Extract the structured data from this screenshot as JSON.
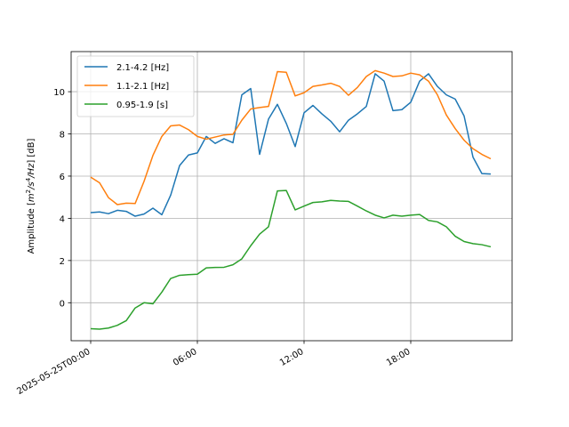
{
  "chart_data": {
    "type": "line",
    "ylabel": "Amplitude",
    "ylabel_unit": "[dB]",
    "ylim": [
      -1.8,
      11.9
    ],
    "xlim_hours": [
      -1.1,
      23.7
    ],
    "yticks": [
      0,
      2,
      4,
      6,
      8,
      10
    ],
    "xticks": [
      {
        "hour": 0,
        "label": "2025-05-25T00:00"
      },
      {
        "hour": 6,
        "label": "06:00"
      },
      {
        "hour": 12,
        "label": "12:00"
      },
      {
        "hour": 18,
        "label": "18:00"
      }
    ],
    "grid": true,
    "legend_position": "top-left",
    "x_hours": [
      0,
      0.5,
      1,
      1.5,
      2,
      2.5,
      3,
      3.5,
      4,
      4.5,
      5,
      5.5,
      6,
      6.5,
      7,
      7.5,
      8,
      8.5,
      9,
      9.5,
      10,
      10.5,
      11,
      11.5,
      12,
      12.5,
      13,
      13.5,
      14,
      14.5,
      15,
      15.5,
      16,
      16.5,
      17,
      17.5,
      18,
      18.5,
      19,
      19.5,
      20,
      20.5,
      21,
      21.5,
      22,
      22.5
    ],
    "series": [
      {
        "name": "2.1-4.2 [Hz]",
        "color": "#1f77b4",
        "values": [
          4.27,
          4.3,
          4.22,
          4.38,
          4.33,
          4.1,
          4.2,
          4.48,
          4.17,
          5.1,
          6.5,
          7.0,
          7.1,
          7.88,
          7.55,
          7.77,
          7.58,
          9.85,
          10.15,
          7.03,
          8.7,
          9.4,
          8.5,
          7.4,
          9.0,
          9.35,
          8.95,
          8.6,
          8.1,
          8.65,
          8.95,
          9.3,
          10.85,
          10.5,
          9.1,
          9.15,
          9.5,
          10.5,
          10.85,
          10.25,
          9.85,
          9.65,
          8.85,
          6.9,
          6.12,
          6.1
        ]
      },
      {
        "name": "1.1-2.1 [Hz]",
        "color": "#ff7f0e",
        "values": [
          5.95,
          5.68,
          4.98,
          4.65,
          4.72,
          4.7,
          5.75,
          6.98,
          7.88,
          8.38,
          8.42,
          8.2,
          7.88,
          7.75,
          7.85,
          7.95,
          7.98,
          8.65,
          9.18,
          9.25,
          9.3,
          10.95,
          10.92,
          9.8,
          9.95,
          10.25,
          10.32,
          10.4,
          10.25,
          9.83,
          10.2,
          10.72,
          11.0,
          10.88,
          10.72,
          10.75,
          10.88,
          10.8,
          10.5,
          9.85,
          8.9,
          8.25,
          7.7,
          7.3,
          7.03,
          6.82
        ]
      },
      {
        "name": "0.95-1.9 [s]",
        "color": "#2ca02c",
        "values": [
          -1.23,
          -1.25,
          -1.2,
          -1.07,
          -0.85,
          -0.25,
          0.0,
          -0.05,
          0.5,
          1.15,
          1.3,
          1.33,
          1.35,
          1.65,
          1.67,
          1.68,
          1.8,
          2.08,
          2.7,
          3.25,
          3.6,
          5.3,
          5.32,
          4.4,
          4.58,
          4.75,
          4.78,
          4.85,
          4.82,
          4.8,
          4.58,
          4.35,
          4.15,
          4.02,
          4.15,
          4.1,
          4.15,
          4.18,
          3.9,
          3.83,
          3.6,
          3.15,
          2.9,
          2.8,
          2.75,
          2.65
        ]
      }
    ]
  }
}
